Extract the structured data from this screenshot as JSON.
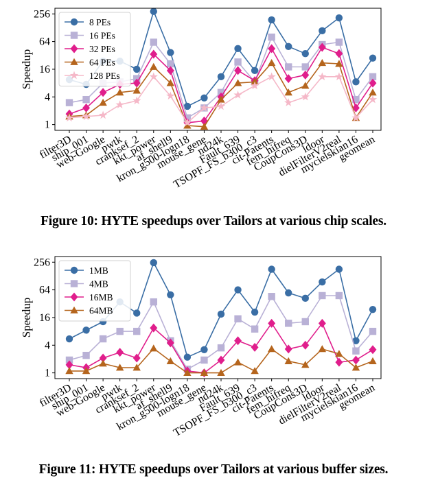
{
  "chart_data": [
    {
      "type": "line",
      "caption": "Figure 10: HYTE speedups over Tailors at various chip scales.",
      "ylabel": "Speedup",
      "yscale": "log2",
      "ylim": [
        0.75,
        340
      ],
      "yticks": [
        "1",
        "4",
        "16",
        "64",
        "256"
      ],
      "legend": "top-left",
      "categories": [
        "filter3D",
        "ship_001",
        "web-Google",
        "pwtk",
        "cranksef_2",
        "kkt_power",
        "af_shell9",
        "kron_g500-logn18",
        "mouse_gene",
        "nd24k",
        "Fault_639",
        "TSOPF_FS_b300_c3",
        "cit-Patents",
        "fem_hifreq",
        "CoupCons3D",
        "ldoor",
        "dielFilterV2real",
        "mycielskian16",
        "geomean"
      ],
      "series": [
        {
          "name": "8 PEs",
          "color": "#3a6ea5",
          "marker": "circle",
          "values": [
            9.5,
            7.5,
            24,
            24,
            16,
            290,
            37,
            2.5,
            3.8,
            11,
            45,
            15,
            190,
            50,
            35,
            110,
            210,
            8.5,
            28
          ]
        },
        {
          "name": "16 PEs",
          "color": "#b9b1d6",
          "marker": "square",
          "values": [
            3,
            3.5,
            8,
            8.5,
            10,
            62,
            21,
            1.4,
            2.3,
            5,
            23,
            8.5,
            80,
            18,
            18,
            55,
            62,
            3.5,
            11
          ]
        },
        {
          "name": "32 PEs",
          "color": "#e01e8c",
          "marker": "diamond",
          "values": [
            1.7,
            2.3,
            5,
            7.5,
            8,
            34,
            15,
            1.1,
            1.2,
            4,
            15,
            9,
            45,
            10,
            12,
            48,
            35,
            2.3,
            8
          ]
        },
        {
          "name": "64 PEs",
          "color": "#b5651d",
          "marker": "triangle",
          "values": [
            1.5,
            1.6,
            3,
            5,
            5.5,
            18,
            8,
            0.95,
            0.9,
            3.5,
            8,
            8.5,
            22,
            5,
            7,
            22,
            21,
            1.4,
            5
          ]
        },
        {
          "name": "128 PEs",
          "color": "#f5b8c8",
          "marker": "star",
          "values": [
            1.4,
            1.5,
            1.6,
            2.7,
            3.3,
            11,
            4.2,
            1.1,
            2.3,
            2.5,
            4.4,
            7,
            11,
            3,
            4,
            11,
            11,
            1.4,
            3.5
          ]
        }
      ]
    },
    {
      "type": "line",
      "caption": "Figure 11: HYTE speedups over Tailors at various buffer sizes.",
      "ylabel": "Speedup",
      "yscale": "log2",
      "ylim": [
        0.75,
        340
      ],
      "yticks": [
        "1",
        "4",
        "16",
        "64",
        "256"
      ],
      "legend": "top-left",
      "categories": [
        "filter3D",
        "ship_001",
        "web-Google",
        "pwtk",
        "cranksef_2",
        "kkt_power",
        "af_shell9",
        "kron_g500-logn18",
        "mouse_gene",
        "nd24k",
        "Fault_639",
        "TSOPF_FS_b300_c3",
        "cit-Patents",
        "fem_hifreq",
        "CoupCons3D",
        "ldoor",
        "dielFilterV2real",
        "mycielskian16",
        "geomean"
      ],
      "series": [
        {
          "name": "1MB",
          "color": "#3a6ea5",
          "marker": "circle",
          "values": [
            5.5,
            8.5,
            13,
            35,
            20,
            250,
            50,
            2.2,
            3.2,
            19,
            64,
            21,
            180,
            55,
            42,
            95,
            180,
            5,
            24
          ]
        },
        {
          "name": "4MB",
          "color": "#b9b1d6",
          "marker": "square",
          "values": [
            1.9,
            2.4,
            5.5,
            8,
            8,
            35,
            5,
            1.2,
            1.9,
            3.5,
            15,
            9,
            46,
            12,
            13,
            48,
            48,
            3,
            8
          ]
        },
        {
          "name": "16MB",
          "color": "#e01e8c",
          "marker": "diamond",
          "values": [
            1.5,
            1.3,
            2.1,
            2.8,
            2.1,
            9.5,
            4.5,
            1.1,
            1,
            1.9,
            5,
            3.6,
            12,
            3.3,
            4,
            12,
            1.7,
            1.9,
            3.2
          ]
        },
        {
          "name": "64MB",
          "color": "#b5651d",
          "marker": "triangle",
          "values": [
            1.1,
            1.1,
            1.6,
            1.3,
            1.3,
            3.4,
            1.8,
            1,
            1,
            1,
            1.7,
            1.1,
            3.3,
            1.8,
            1.5,
            3.3,
            2.6,
            1.3,
            1.8
          ]
        }
      ]
    }
  ]
}
